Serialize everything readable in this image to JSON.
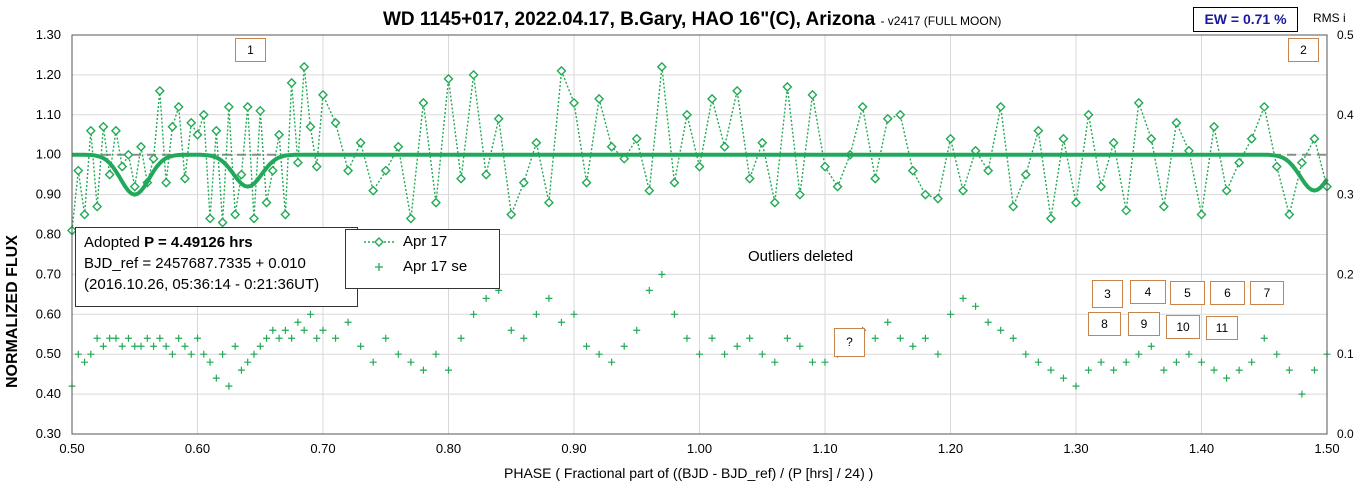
{
  "header": {
    "title": "WD 1145+017, 2022.04.17, B.Gary, HAO 16\"(C), Arizona",
    "subtitle": "- v2417 (FULL MOON)",
    "ew_label": "EW = 0.71 %",
    "rms_label": "RMS i"
  },
  "info_box": {
    "line1_prefix": "Adopted ",
    "line1_bold": "P = 4.49126 hrs",
    "line2": "BJD_ref = 2457687.7335 + 0.010",
    "line3": "(2016.10.26, 05:36:14 - 0:21:36UT)"
  },
  "annotation": "Outliers deleted",
  "numbered_boxes": [
    "1",
    "2",
    "3",
    "4",
    "5",
    "6",
    "7",
    "8",
    "9",
    "10",
    "11",
    "?"
  ],
  "colors": {
    "series": "#22aa55",
    "model": "#22a85a",
    "reference": "#8c8c8c",
    "box_border": "#c8844b"
  },
  "chart_data": {
    "type": "scatter",
    "xlabel": "PHASE ( Fractional part of ((BJD - BJD_ref) / (P [hrs] / 24) )",
    "ylabel": "NORMALIZED FLUX",
    "y2label": "RMS i",
    "xlim": [
      0.5,
      1.5
    ],
    "ylim": [
      0.3,
      1.3
    ],
    "y2lim": [
      0.0,
      0.5
    ],
    "x_ticks": [
      "0.50",
      "0.60",
      "0.70",
      "0.80",
      "0.90",
      "1.00",
      "1.10",
      "1.20",
      "1.30",
      "1.40",
      "1.50"
    ],
    "y_ticks": [
      "0.30",
      "0.40",
      "0.50",
      "0.60",
      "0.70",
      "0.80",
      "0.90",
      "1.00",
      "1.10",
      "1.20",
      "1.30"
    ],
    "y2_ticks": [
      "0.0",
      "0.1",
      "0.2",
      "0.3",
      "0.4",
      "0.5"
    ],
    "grid": true,
    "legend_position": "center-left",
    "reference_level": 1.0,
    "dips": [
      {
        "center": 0.55,
        "depth": 0.1
      },
      {
        "center": 0.64,
        "depth": 0.08
      },
      {
        "center": 1.49,
        "depth": 0.09
      }
    ],
    "series": [
      {
        "name": "Apr 17",
        "marker": "diamond",
        "line": "dotted",
        "x": [
          0.5,
          0.505,
          0.51,
          0.515,
          0.52,
          0.525,
          0.53,
          0.535,
          0.54,
          0.545,
          0.55,
          0.555,
          0.56,
          0.565,
          0.57,
          0.575,
          0.58,
          0.585,
          0.59,
          0.595,
          0.6,
          0.605,
          0.61,
          0.615,
          0.62,
          0.625,
          0.63,
          0.635,
          0.64,
          0.645,
          0.65,
          0.655,
          0.66,
          0.665,
          0.67,
          0.675,
          0.68,
          0.685,
          0.69,
          0.695,
          0.7,
          0.71,
          0.72,
          0.73,
          0.74,
          0.75,
          0.76,
          0.77,
          0.78,
          0.79,
          0.8,
          0.81,
          0.82,
          0.83,
          0.84,
          0.85,
          0.86,
          0.87,
          0.88,
          0.89,
          0.9,
          0.91,
          0.92,
          0.93,
          0.94,
          0.95,
          0.96,
          0.97,
          0.98,
          0.99,
          1.0,
          1.01,
          1.02,
          1.03,
          1.04,
          1.05,
          1.06,
          1.07,
          1.08,
          1.09,
          1.1,
          1.11,
          1.12,
          1.13,
          1.14,
          1.15,
          1.16,
          1.17,
          1.18,
          1.19,
          1.2,
          1.21,
          1.22,
          1.23,
          1.24,
          1.25,
          1.26,
          1.27,
          1.28,
          1.29,
          1.3,
          1.31,
          1.32,
          1.33,
          1.34,
          1.35,
          1.36,
          1.37,
          1.38,
          1.39,
          1.4,
          1.41,
          1.42,
          1.43,
          1.44,
          1.45,
          1.46,
          1.47,
          1.48,
          1.49,
          1.5
        ],
        "y": [
          0.81,
          0.96,
          0.85,
          1.06,
          0.87,
          1.07,
          0.95,
          1.06,
          0.97,
          1.0,
          0.92,
          1.02,
          0.93,
          0.99,
          1.16,
          0.93,
          1.07,
          1.12,
          0.94,
          1.08,
          1.05,
          1.1,
          0.84,
          1.06,
          0.83,
          1.12,
          0.85,
          0.95,
          1.12,
          0.84,
          1.11,
          0.88,
          0.96,
          1.05,
          0.85,
          1.18,
          0.98,
          1.22,
          1.07,
          0.97,
          1.15,
          1.08,
          0.96,
          1.03,
          0.91,
          0.96,
          1.02,
          0.84,
          1.13,
          0.88,
          1.19,
          0.94,
          1.2,
          0.95,
          1.09,
          0.85,
          0.93,
          1.03,
          0.88,
          1.21,
          1.13,
          0.93,
          1.14,
          1.02,
          0.99,
          1.04,
          0.91,
          1.22,
          0.93,
          1.1,
          0.97,
          1.14,
          1.02,
          1.16,
          0.94,
          1.03,
          0.88,
          1.17,
          0.9,
          1.15,
          0.97,
          0.92,
          1.0,
          1.12,
          0.94,
          1.09,
          1.1,
          0.96,
          0.9,
          0.89,
          1.04,
          0.91,
          1.01,
          0.96,
          1.12,
          0.87,
          0.95,
          1.06,
          0.84,
          1.04,
          0.88,
          1.1,
          0.92,
          1.03,
          0.86,
          1.13,
          1.04,
          0.87,
          1.08,
          1.01,
          0.85,
          1.07,
          0.91,
          0.98,
          1.04,
          1.12,
          0.97,
          0.85,
          0.98,
          1.04,
          0.92
        ]
      },
      {
        "name": "Apr 17 se",
        "marker": "plus",
        "axis": "right",
        "x": [
          0.5,
          0.505,
          0.51,
          0.515,
          0.52,
          0.525,
          0.53,
          0.535,
          0.54,
          0.545,
          0.55,
          0.555,
          0.56,
          0.565,
          0.57,
          0.575,
          0.58,
          0.585,
          0.59,
          0.595,
          0.6,
          0.605,
          0.61,
          0.615,
          0.62,
          0.625,
          0.63,
          0.635,
          0.64,
          0.645,
          0.65,
          0.655,
          0.66,
          0.665,
          0.67,
          0.675,
          0.68,
          0.685,
          0.69,
          0.695,
          0.7,
          0.71,
          0.72,
          0.73,
          0.74,
          0.75,
          0.76,
          0.77,
          0.78,
          0.79,
          0.8,
          0.81,
          0.82,
          0.83,
          0.84,
          0.85,
          0.86,
          0.87,
          0.88,
          0.89,
          0.9,
          0.91,
          0.92,
          0.93,
          0.94,
          0.95,
          0.96,
          0.97,
          0.98,
          0.99,
          1.0,
          1.01,
          1.02,
          1.03,
          1.04,
          1.05,
          1.06,
          1.07,
          1.08,
          1.09,
          1.1,
          1.11,
          1.12,
          1.13,
          1.14,
          1.15,
          1.16,
          1.17,
          1.18,
          1.19,
          1.2,
          1.21,
          1.22,
          1.23,
          1.24,
          1.25,
          1.26,
          1.27,
          1.28,
          1.29,
          1.3,
          1.31,
          1.32,
          1.33,
          1.34,
          1.35,
          1.36,
          1.37,
          1.38,
          1.39,
          1.4,
          1.41,
          1.42,
          1.43,
          1.44,
          1.45,
          1.46,
          1.47,
          1.48,
          1.49,
          1.5
        ],
        "y": [
          0.06,
          0.1,
          0.09,
          0.1,
          0.12,
          0.11,
          0.12,
          0.12,
          0.11,
          0.12,
          0.11,
          0.11,
          0.12,
          0.11,
          0.12,
          0.11,
          0.1,
          0.12,
          0.11,
          0.1,
          0.12,
          0.1,
          0.09,
          0.07,
          0.1,
          0.06,
          0.11,
          0.08,
          0.09,
          0.1,
          0.11,
          0.12,
          0.13,
          0.12,
          0.13,
          0.12,
          0.14,
          0.13,
          0.15,
          0.12,
          0.13,
          0.12,
          0.14,
          0.11,
          0.09,
          0.12,
          0.1,
          0.09,
          0.08,
          0.1,
          0.08,
          0.12,
          0.15,
          0.17,
          0.18,
          0.13,
          0.12,
          0.15,
          0.17,
          0.14,
          0.15,
          0.11,
          0.1,
          0.09,
          0.11,
          0.13,
          0.18,
          0.2,
          0.15,
          0.12,
          0.1,
          0.12,
          0.1,
          0.11,
          0.12,
          0.1,
          0.09,
          0.12,
          0.11,
          0.09,
          0.09,
          0.1,
          0.11,
          0.13,
          0.12,
          0.14,
          0.12,
          0.11,
          0.12,
          0.1,
          0.15,
          0.17,
          0.16,
          0.14,
          0.13,
          0.12,
          0.1,
          0.09,
          0.08,
          0.07,
          0.06,
          0.08,
          0.09,
          0.08,
          0.09,
          0.1,
          0.11,
          0.08,
          0.09,
          0.1,
          0.09,
          0.08,
          0.07,
          0.08,
          0.09,
          0.12,
          0.1,
          0.08,
          0.05,
          0.08,
          0.1
        ]
      }
    ]
  }
}
